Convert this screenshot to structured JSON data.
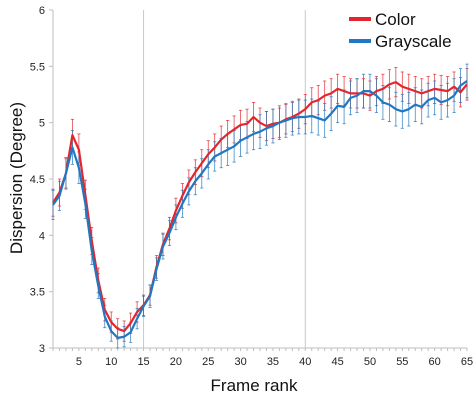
{
  "chart_data": {
    "type": "line",
    "title": "",
    "xlabel": "Frame rank",
    "ylabel": "Dispersion (Degree)",
    "xlim": [
      1,
      65
    ],
    "ylim": [
      3,
      6
    ],
    "x_ticks": [
      5,
      10,
      15,
      20,
      25,
      30,
      35,
      40,
      45,
      50,
      55,
      60,
      65
    ],
    "y_ticks": [
      "3",
      "3.5",
      "4",
      "4.5",
      "5",
      "5.5",
      "6"
    ],
    "vertical_reference_lines": [
      15,
      40
    ],
    "grid": false,
    "legend_position": "top-right",
    "x": [
      1,
      2,
      3,
      4,
      5,
      6,
      7,
      8,
      9,
      10,
      11,
      12,
      13,
      14,
      15,
      16,
      17,
      18,
      19,
      20,
      21,
      22,
      23,
      24,
      25,
      26,
      27,
      28,
      29,
      30,
      31,
      32,
      33,
      34,
      35,
      36,
      37,
      38,
      39,
      40,
      41,
      42,
      43,
      44,
      45,
      46,
      47,
      48,
      49,
      50,
      51,
      52,
      53,
      54,
      55,
      56,
      57,
      58,
      59,
      60,
      61,
      62,
      63,
      64,
      65
    ],
    "series": [
      {
        "name": "Color",
        "color": "#e3262d",
        "values": [
          4.29,
          4.38,
          4.55,
          4.89,
          4.76,
          4.36,
          3.95,
          3.6,
          3.34,
          3.23,
          3.17,
          3.15,
          3.22,
          3.32,
          3.38,
          3.47,
          3.72,
          3.92,
          4.06,
          4.22,
          4.35,
          4.47,
          4.56,
          4.64,
          4.72,
          4.78,
          4.85,
          4.9,
          4.94,
          4.98,
          4.99,
          5.05,
          5.0,
          4.97,
          4.99,
          5.0,
          5.03,
          5.05,
          5.08,
          5.12,
          5.18,
          5.2,
          5.24,
          5.26,
          5.3,
          5.28,
          5.26,
          5.26,
          5.26,
          5.24,
          5.28,
          5.3,
          5.34,
          5.36,
          5.32,
          5.3,
          5.28,
          5.26,
          5.28,
          5.3,
          5.29,
          5.28,
          5.32,
          5.27,
          5.34
        ],
        "error": [
          0.12,
          0.12,
          0.13,
          0.14,
          0.14,
          0.13,
          0.12,
          0.11,
          0.1,
          0.09,
          0.09,
          0.09,
          0.09,
          0.09,
          0.09,
          0.09,
          0.1,
          0.1,
          0.1,
          0.11,
          0.11,
          0.11,
          0.11,
          0.12,
          0.12,
          0.12,
          0.12,
          0.12,
          0.12,
          0.13,
          0.13,
          0.13,
          0.13,
          0.13,
          0.13,
          0.13,
          0.13,
          0.13,
          0.13,
          0.13,
          0.13,
          0.13,
          0.13,
          0.13,
          0.13,
          0.13,
          0.13,
          0.13,
          0.13,
          0.13,
          0.13,
          0.13,
          0.13,
          0.13,
          0.13,
          0.13,
          0.13,
          0.13,
          0.13,
          0.13,
          0.13,
          0.13,
          0.13,
          0.13,
          0.14
        ]
      },
      {
        "name": "Grayscale",
        "color": "#1f78c1",
        "values": [
          4.27,
          4.35,
          4.55,
          4.78,
          4.6,
          4.28,
          3.86,
          3.55,
          3.28,
          3.15,
          3.09,
          3.1,
          3.14,
          3.26,
          3.37,
          3.46,
          3.7,
          3.9,
          4.02,
          4.16,
          4.28,
          4.39,
          4.48,
          4.55,
          4.63,
          4.7,
          4.73,
          4.76,
          4.79,
          4.84,
          4.87,
          4.9,
          4.92,
          4.95,
          4.97,
          5.0,
          5.02,
          5.04,
          5.05,
          5.05,
          5.06,
          5.04,
          5.02,
          5.08,
          5.15,
          5.14,
          5.22,
          5.24,
          5.28,
          5.28,
          5.24,
          5.18,
          5.16,
          5.12,
          5.1,
          5.12,
          5.16,
          5.14,
          5.2,
          5.22,
          5.18,
          5.2,
          5.24,
          5.33,
          5.37
        ],
        "error": [
          0.13,
          0.13,
          0.14,
          0.15,
          0.14,
          0.13,
          0.12,
          0.11,
          0.1,
          0.09,
          0.09,
          0.09,
          0.09,
          0.09,
          0.09,
          0.1,
          0.1,
          0.11,
          0.11,
          0.11,
          0.12,
          0.12,
          0.12,
          0.13,
          0.13,
          0.13,
          0.13,
          0.14,
          0.14,
          0.14,
          0.14,
          0.14,
          0.15,
          0.15,
          0.15,
          0.15,
          0.15,
          0.15,
          0.15,
          0.15,
          0.15,
          0.15,
          0.15,
          0.15,
          0.15,
          0.15,
          0.15,
          0.15,
          0.15,
          0.15,
          0.15,
          0.15,
          0.15,
          0.15,
          0.15,
          0.15,
          0.15,
          0.15,
          0.15,
          0.15,
          0.15,
          0.15,
          0.15,
          0.15,
          0.15
        ]
      }
    ]
  }
}
